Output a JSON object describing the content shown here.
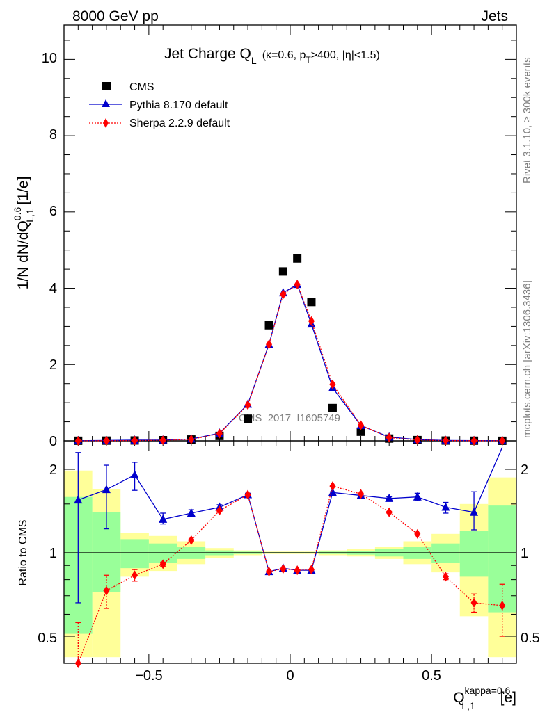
{
  "header": {
    "left": "8000 GeV pp",
    "right": "Jets"
  },
  "side_labels": {
    "rivet": "Rivet 3.1.10, ≥ 300k events",
    "mcplots": "mcplots.cern.ch [arXiv:1306.3436]"
  },
  "watermark": "CMS_2017_I1605749",
  "title": {
    "main": "Jet Charge Q",
    "main_sub": "L",
    "cond_a": "(κ=0.6, p",
    "cond_sub": "T",
    "cond_b": ">400, |η|<1.5)"
  },
  "axes": {
    "main_ylabel": {
      "pre": "1/N dN/dQ",
      "sup": "0.6",
      "sub": "L,1",
      "post": " [1/e]"
    },
    "ratio_ylabel": "Ratio to CMS",
    "xlabel": {
      "pre": "Q",
      "sup": "kappa=0.6",
      "sub": "L,1",
      "post": " [e]"
    },
    "x_tick_labels": [
      "−0.5",
      "0",
      "0.5"
    ],
    "main_tick_labels": [
      "0",
      "2",
      "4",
      "6",
      "8",
      "10"
    ],
    "ratio_tick_labels_left": [
      "0.5",
      "1",
      "2"
    ],
    "ratio_tick_labels_right": [
      "0.5",
      "1",
      "2"
    ]
  },
  "legend": {
    "placement": "top-left",
    "entries": [
      {
        "label": "CMS",
        "marker": "square",
        "color": "#000000"
      },
      {
        "label": "Pythia 8.170 default",
        "marker": "triangle",
        "color": "#0000cc"
      },
      {
        "label": "Sherpa 2.2.9 default",
        "marker": "diamond",
        "color": "#ff0000"
      }
    ]
  },
  "chart_data": [
    {
      "type": "scatter",
      "panel": "main",
      "x": [
        -0.75,
        -0.65,
        -0.55,
        -0.45,
        -0.35,
        -0.25,
        -0.15,
        -0.075,
        -0.025,
        0.025,
        0.075,
        0.15,
        0.25,
        0.35,
        0.45,
        0.55,
        0.65,
        0.75
      ],
      "xlim": [
        -0.8,
        0.8
      ],
      "ylim": [
        0,
        10.9
      ],
      "y_ticks": [
        0,
        2,
        4,
        6,
        8,
        10
      ],
      "series": [
        {
          "name": "CMS",
          "color": "#000000",
          "marker": "square",
          "values": [
            0.003,
            0.006,
            0.01,
            0.018,
            0.035,
            0.13,
            0.58,
            3.03,
            4.44,
            4.78,
            3.64,
            0.86,
            0.24,
            0.06,
            0.02,
            0.008,
            0.004,
            0.002
          ]
        },
        {
          "name": "Pythia 8.170 default",
          "color": "#0000cc",
          "marker": "triangle",
          "values": [
            0.005,
            0.01,
            0.019,
            0.023,
            0.048,
            0.2,
            0.96,
            2.53,
            3.88,
            4.1,
            3.06,
            1.39,
            0.4,
            0.1,
            0.033,
            0.012,
            0.006,
            0.005
          ]
        },
        {
          "name": "Sherpa 2.2.9 default",
          "color": "#ff0000",
          "marker": "diamond",
          "values": [
            0.001,
            0.004,
            0.008,
            0.016,
            0.038,
            0.19,
            0.94,
            2.53,
            3.84,
            4.1,
            3.14,
            1.48,
            0.41,
            0.085,
            0.024,
            0.007,
            0.003,
            0.002
          ]
        }
      ]
    },
    {
      "type": "line",
      "panel": "ratio",
      "x": [
        -0.75,
        -0.65,
        -0.55,
        -0.45,
        -0.35,
        -0.25,
        -0.15,
        -0.075,
        -0.025,
        0.025,
        0.075,
        0.15,
        0.25,
        0.35,
        0.45,
        0.55,
        0.65,
        0.75
      ],
      "xlim": [
        -0.8,
        0.8
      ],
      "ylim": [
        0.4,
        2.35
      ],
      "y_scale": "log",
      "reference_line": 1,
      "bin_edges": [
        -0.8,
        -0.7,
        -0.6,
        -0.5,
        -0.4,
        -0.3,
        -0.2,
        -0.1,
        -0.05,
        0,
        0.05,
        0.1,
        0.2,
        0.3,
        0.4,
        0.5,
        0.6,
        0.7,
        0.8
      ],
      "band_inner": {
        "color": "#99ff99",
        "lo": [
          0.51,
          0.72,
          0.88,
          0.92,
          0.95,
          0.98,
          0.99,
          0.995,
          0.995,
          0.995,
          0.995,
          0.99,
          0.985,
          0.97,
          0.95,
          0.92,
          0.82,
          0.61
        ],
        "hi": [
          1.59,
          1.4,
          1.12,
          1.08,
          1.05,
          1.02,
          1.01,
          1.005,
          1.005,
          1.005,
          1.005,
          1.01,
          1.015,
          1.03,
          1.05,
          1.08,
          1.2,
          1.48
        ]
      },
      "band_outer": {
        "color": "#ffff99",
        "lo": [
          0.42,
          0.42,
          0.82,
          0.86,
          0.91,
          0.96,
          0.98,
          0.99,
          0.99,
          0.99,
          0.99,
          0.98,
          0.97,
          0.95,
          0.91,
          0.85,
          0.59,
          0.42
        ],
        "hi": [
          1.98,
          1.7,
          1.18,
          1.15,
          1.1,
          1.04,
          1.02,
          1.01,
          1.01,
          1.01,
          1.01,
          1.02,
          1.03,
          1.05,
          1.1,
          1.17,
          1.5,
          1.87
        ]
      },
      "series": [
        {
          "name": "Pythia 8.170 default",
          "color": "#0000cc",
          "marker": "triangle",
          "values": [
            1.55,
            1.69,
            1.91,
            1.32,
            1.39,
            1.46,
            1.62,
            0.855,
            0.88,
            0.865,
            0.865,
            1.65,
            1.61,
            1.57,
            1.59,
            1.46,
            1.4,
            2.4
          ],
          "err_lo": [
            0.66,
            1.22,
            1.68,
            1.27,
            1.35,
            1.44,
            1.61,
            0.85,
            0.875,
            0.86,
            0.86,
            1.64,
            1.6,
            1.55,
            1.54,
            1.39,
            1.21,
            2.4
          ],
          "err_hi": [
            2.3,
            2.07,
            2.12,
            1.39,
            1.43,
            1.49,
            1.64,
            0.86,
            0.885,
            0.87,
            0.87,
            1.66,
            1.62,
            1.59,
            1.64,
            1.52,
            1.66,
            2.4
          ]
        },
        {
          "name": "Sherpa 2.2.9 default",
          "color": "#ff0000",
          "marker": "diamond",
          "values": [
            0.35,
            0.73,
            0.83,
            0.91,
            1.11,
            1.42,
            1.62,
            0.855,
            0.875,
            0.865,
            0.87,
            1.74,
            1.63,
            1.4,
            1.17,
            0.82,
            0.66,
            0.645
          ],
          "err_lo": [
            0.2,
            0.63,
            0.79,
            0.895,
            1.1,
            1.41,
            1.61,
            0.85,
            0.87,
            0.86,
            0.865,
            1.73,
            1.62,
            1.39,
            1.16,
            0.8,
            0.61,
            0.5
          ],
          "err_hi": [
            0.56,
            0.83,
            0.87,
            0.925,
            1.12,
            1.43,
            1.63,
            0.86,
            0.88,
            0.87,
            0.875,
            1.75,
            1.64,
            1.41,
            1.18,
            0.84,
            0.71,
            0.77
          ]
        }
      ]
    }
  ]
}
